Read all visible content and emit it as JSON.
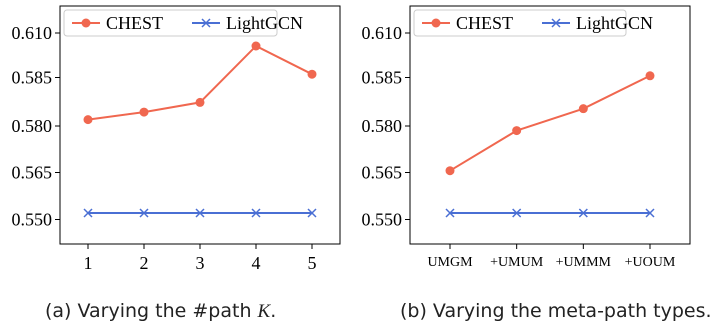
{
  "chart_data": [
    {
      "type": "line",
      "title": "",
      "xlabel": "",
      "ylabel": "",
      "categories": [
        "1",
        "2",
        "3",
        "4",
        "5"
      ],
      "y_ticks": [
        "0.550",
        "0.565",
        "0.580",
        "0.585",
        "0.610"
      ],
      "ylim": [
        0.545,
        0.614
      ],
      "grid": false,
      "legend": "top-left",
      "series": [
        {
          "name": "CHEST",
          "color": "#f0674f",
          "marker": "circle",
          "values": [
            0.5805,
            0.5829,
            0.586,
            0.604,
            0.595
          ]
        },
        {
          "name": "LightGCN",
          "color": "#4a6fd4",
          "marker": "x",
          "values": [
            0.5507,
            0.5507,
            0.5507,
            0.5507,
            0.5507
          ]
        }
      ],
      "caption_prefix": "(a) Varying the #path ",
      "caption_var": "K",
      "caption_suffix": "."
    },
    {
      "type": "line",
      "title": "",
      "xlabel": "",
      "ylabel": "",
      "categories": [
        "UMGM",
        "+UMUM",
        "+UMMM",
        "+UOUM"
      ],
      "y_ticks": [
        "0.550",
        "0.565",
        "0.580",
        "0.585",
        "0.610"
      ],
      "ylim": [
        0.545,
        0.614
      ],
      "grid": false,
      "legend": "top-left",
      "series": [
        {
          "name": "CHEST",
          "color": "#f0674f",
          "marker": "circle",
          "values": [
            0.5642,
            0.577,
            0.584,
            0.5945
          ]
        },
        {
          "name": "LightGCN",
          "color": "#4a6fd4",
          "marker": "x",
          "values": [
            0.5507,
            0.5507,
            0.5507,
            0.5507
          ]
        }
      ],
      "caption_prefix": "(b) Varying the meta-path types.",
      "caption_var": "",
      "caption_suffix": ""
    }
  ]
}
